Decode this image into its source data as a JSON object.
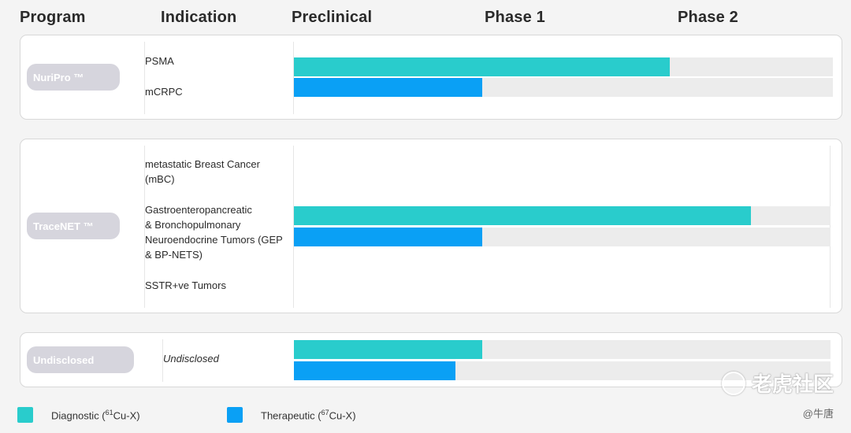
{
  "headers": {
    "program": "Program",
    "indication": "Indication",
    "preclinical": "Preclinical",
    "phase1": "Phase 1",
    "phase2": "Phase 2"
  },
  "colors": {
    "diagnostic": "#29cccc",
    "therapeutic": "#0aa0f5",
    "track": "#ececec",
    "pill": "#d6d5dd"
  },
  "programs": [
    {
      "name": "NuriPro ™",
      "indications": [
        "PSMA",
        "mCRPC"
      ]
    },
    {
      "name": "TraceNET ™",
      "indications": [
        "metastatic Breast Cancer\n(mBC)",
        "Gastroenteropancreatic\n& Bronchopulmonary\nNeuroendocrine Tumors (GEP\n& BP-NETS)",
        "SSTR+ve Tumors"
      ]
    },
    {
      "name": "Undisclosed",
      "indications": [
        "Undisclosed"
      ]
    }
  ],
  "chart_data": {
    "type": "bar",
    "orientation": "horizontal",
    "stages": [
      "Preclinical",
      "Phase 1",
      "Phase 2"
    ],
    "xlim": [
      0,
      3
    ],
    "series": [
      {
        "name": "Diagnostic (⁶¹Cu-X)",
        "color": "#29cccc"
      },
      {
        "name": "Therapeutic (⁶⁷Cu-X)",
        "color": "#0aa0f5"
      }
    ],
    "rows": [
      {
        "program": "NuriPro ™",
        "bars": [
          {
            "series": "Diagnostic",
            "value": 2.1
          },
          {
            "series": "Therapeutic",
            "value": 1.05
          }
        ]
      },
      {
        "program": "TraceNET ™",
        "bars": [
          {
            "series": "Diagnostic",
            "value": 2.55
          },
          {
            "series": "Therapeutic",
            "value": 1.05
          }
        ]
      },
      {
        "program": "Undisclosed",
        "bars": [
          {
            "series": "Diagnostic",
            "value": 1.05
          },
          {
            "series": "Therapeutic",
            "value": 0.9
          }
        ]
      }
    ]
  },
  "legend": {
    "diagnostic_label": "Diagnostic (",
    "diagnostic_sup": "61",
    "diagnostic_tail": "Cu-X)",
    "therapeutic_label": "Therapeutic (",
    "therapeutic_sup": "67",
    "therapeutic_tail": "Cu-X)"
  },
  "watermark": {
    "logo_text": "老虎社区",
    "user": "@牛唐"
  }
}
